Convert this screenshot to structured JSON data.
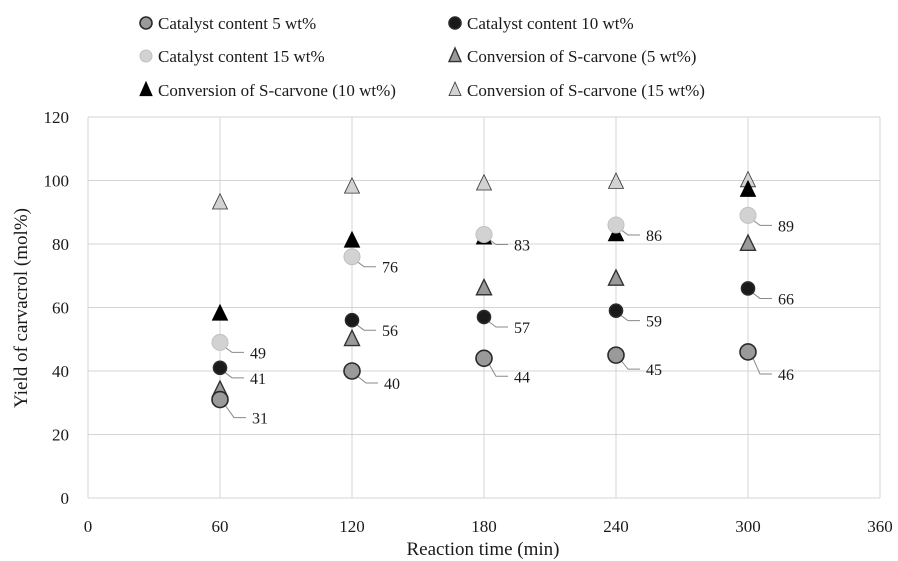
{
  "chart_data": {
    "type": "scatter",
    "title": "",
    "xlabel": "Reaction time (min)",
    "ylabel": "Yield of carvacrol (mol%)",
    "xlim": [
      0,
      360
    ],
    "ylim": [
      0,
      120
    ],
    "xticks": [
      0,
      60,
      120,
      180,
      240,
      300,
      360
    ],
    "yticks": [
      0,
      20,
      40,
      60,
      80,
      100,
      120
    ],
    "grid": "vertical and horizontal",
    "legend_position": "top",
    "x": [
      60,
      120,
      180,
      240,
      300
    ],
    "series": [
      {
        "name": "Catalyst content 5 wt%",
        "marker": "circle-large",
        "color": "#9a9a9a",
        "values": [
          31,
          40,
          44,
          45,
          46
        ],
        "labels": [
          "31",
          "40",
          "44",
          "45",
          "46"
        ]
      },
      {
        "name": "Catalyst content 10 wt%",
        "marker": "circle",
        "color": "#1a1a1a",
        "values": [
          41,
          56,
          57,
          59,
          66
        ],
        "labels": [
          "41",
          "56",
          "57",
          "59",
          "66"
        ]
      },
      {
        "name": "Catalyst content 15 wt%",
        "marker": "circle-large",
        "color": "#d2d2d2",
        "values": [
          49,
          76,
          83,
          86,
          89
        ],
        "labels": [
          "49",
          "76",
          "83",
          "86",
          "89"
        ]
      },
      {
        "name": "Conversion of S-carvone (5 wt%)",
        "marker": "triangle",
        "color": "#9a9a9a",
        "values": [
          34,
          50,
          66,
          69,
          80
        ]
      },
      {
        "name": "Conversion of S-carvone (10 wt%)",
        "marker": "triangle",
        "color": "#000000",
        "values": [
          58,
          81,
          82,
          83,
          97
        ]
      },
      {
        "name": "Conversion of S-carvone (15 wt%)",
        "marker": "triangle",
        "color": "#d2d2d2",
        "values": [
          93,
          98,
          99,
          99.5,
          100
        ]
      }
    ]
  }
}
